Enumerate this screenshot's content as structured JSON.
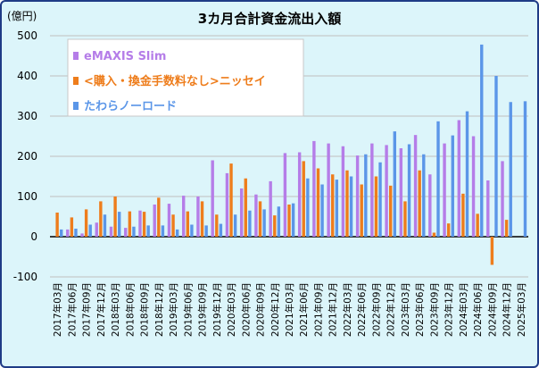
{
  "chart_data": {
    "type": "bar",
    "title": "3カ月合計資金流出入額",
    "y_unit": "(億円)",
    "ylim": [
      -100,
      500
    ],
    "yticks": [
      -100,
      0,
      100,
      200,
      300,
      400,
      500
    ],
    "grid": true,
    "legend_position": "top-left",
    "categories": [
      "2017年03月",
      "2017年06月",
      "2017年09月",
      "2017年12月",
      "2018年03月",
      "2018年06月",
      "2018年09月",
      "2018年12月",
      "2019年03月",
      "2019年06月",
      "2019年09月",
      "2019年12月",
      "2020年03月",
      "2020年06月",
      "2020年09月",
      "2020年12月",
      "2021年03月",
      "2021年06月",
      "2021年09月",
      "2021年12月",
      "2022年03月",
      "2022年06月",
      "2022年09月",
      "2022年12月",
      "2023年03月",
      "2023年06月",
      "2023年09月",
      "2023年12月",
      "2024年03月",
      "2024年06月",
      "2024年09月",
      "2024年12月",
      "2025年03月"
    ],
    "x_labels": [
      "2017年03月",
      "2017年06月",
      "2017年09月",
      "2017年12月",
      "2018年03月",
      "2018年06月",
      "2018年09月",
      "2018年12月",
      "2019年03月",
      "2019年06月",
      "2019年09月",
      "2019年12月",
      "2020年03月",
      "2020年06月",
      "2020年09月",
      "2020年12月",
      "2021年03月",
      "2021年06月",
      "2021年09月",
      "2021年12月",
      "2022年03月",
      "2022年06月",
      "2022年09月",
      "2022年12月",
      "2023年03月",
      "2023年06月",
      "2023年09月",
      "2023年12月",
      "2024年03月",
      "2024年06月",
      "2024年09月",
      "2024年12月",
      "2025年03月"
    ],
    "series": [
      {
        "name": "eMAXIS Slim",
        "color": "#b57de8",
        "values": [
          null,
          18,
          8,
          35,
          25,
          22,
          65,
          80,
          82,
          102,
          100,
          190,
          158,
          120,
          105,
          138,
          208,
          210,
          238,
          232,
          225,
          202,
          232,
          228,
          220,
          253,
          155,
          232,
          290,
          250,
          140,
          188,
          null
        ]
      },
      {
        "name": "<購入・換金手数料なし>ニッセイ",
        "color": "#ee7d1c",
        "values": [
          60,
          48,
          68,
          88,
          100,
          63,
          62,
          97,
          55,
          63,
          88,
          55,
          182,
          145,
          88,
          53,
          80,
          188,
          170,
          155,
          165,
          130,
          150,
          127,
          88,
          165,
          10,
          33,
          107,
          57,
          -70,
          42,
          null
        ]
      },
      {
        "name": "たわらノーロード",
        "color": "#5b96e8",
        "values": [
          18,
          20,
          30,
          55,
          62,
          25,
          28,
          28,
          18,
          30,
          28,
          32,
          55,
          65,
          68,
          75,
          83,
          145,
          130,
          142,
          150,
          205,
          185,
          262,
          230,
          205,
          287,
          252,
          312,
          478,
          400,
          335,
          337
        ]
      }
    ]
  }
}
